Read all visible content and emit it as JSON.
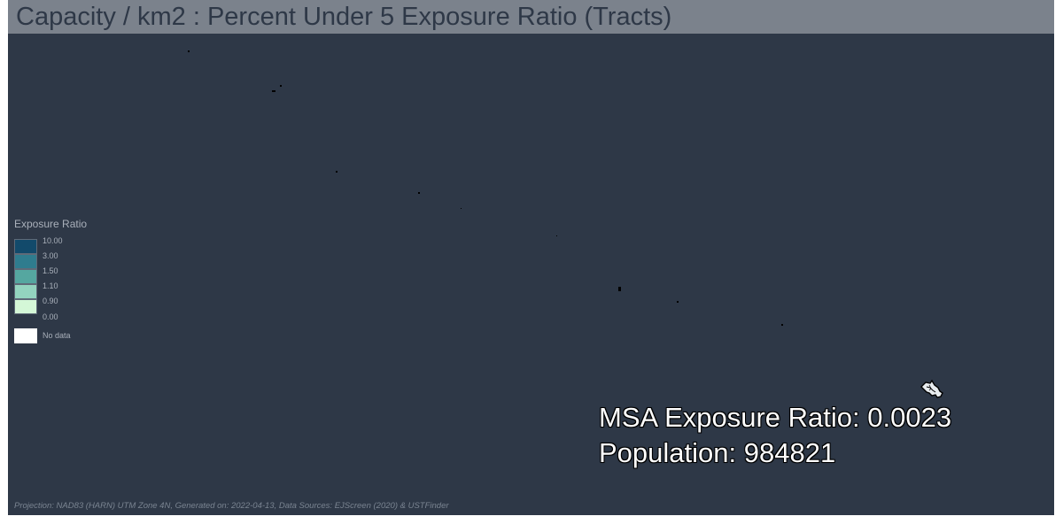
{
  "title": "Capacity / km2 : Percent Under 5 Exposure Ratio (Tracts)",
  "legend": {
    "title": "Exposure Ratio",
    "items": [
      {
        "label": "10.00",
        "color": "#124a6b"
      },
      {
        "label": "3.00",
        "color": "#2f7c8e"
      },
      {
        "label": "1.50",
        "color": "#55a7a0"
      },
      {
        "label": "1.10",
        "color": "#93d4bf"
      },
      {
        "label": "0.90",
        "color": "#d4f7d7"
      },
      {
        "label": "0.00",
        "color": ""
      }
    ],
    "no_data": {
      "label": "No data",
      "color": "#ffffff"
    }
  },
  "stats": {
    "exposure_ratio": "MSA Exposure Ratio: 0.0023",
    "population": "Population: 984821"
  },
  "footer": "Projection: NAD83 (HARN) UTM Zone 4N, Generated on: 2022-04-13, Data Sources: EJScreen (2020) & USTFinder",
  "colors": {
    "background": "#2e3847",
    "title_bar": "#7b828c",
    "title_text": "#2e3847",
    "legend_text": "#a9b0ba"
  }
}
